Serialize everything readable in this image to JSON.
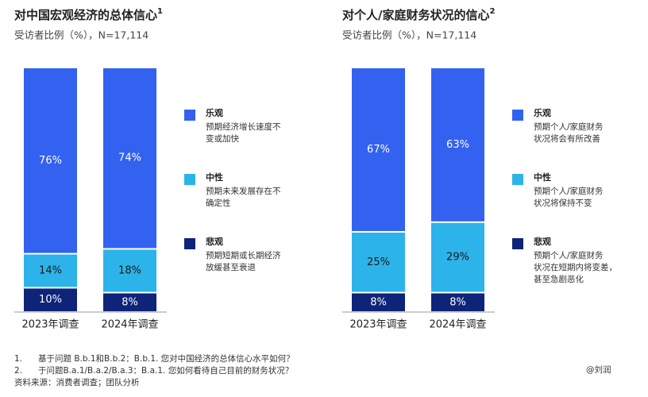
{
  "chart_data": [
    {
      "type": "bar",
      "stacked": true,
      "title": "对中国宏观经济的总体信心",
      "title_note": "1",
      "subtitle": "受访者比例（%），N=17,114",
      "categories": [
        "2023年调查",
        "2024年调查"
      ],
      "series": [
        {
          "name": "乐观",
          "description": [
            "预期经济增长速度不",
            "变或加快"
          ],
          "color": "#3262ef",
          "label_color": "#ffffff",
          "values": [
            76,
            74
          ],
          "value_labels": [
            "76%",
            "74%"
          ]
        },
        {
          "name": "中性",
          "description": [
            "预期未来发展存在不",
            "确定性"
          ],
          "color": "#2cb3ea",
          "label_color": "#1a1a1a",
          "values": [
            14,
            18
          ],
          "value_labels": [
            "14%",
            "18%"
          ]
        },
        {
          "name": "悲观",
          "description": [
            "预期短期或长期经济",
            "放缓甚至衰退"
          ],
          "color": "#0e2478",
          "label_color": "#ffffff",
          "values": [
            10,
            8
          ],
          "value_labels": [
            "10%",
            "8%"
          ]
        }
      ]
    },
    {
      "type": "bar",
      "stacked": true,
      "title": "对个人/家庭财务状况的信心",
      "title_note": "2",
      "subtitle": "受访者比例（%），N=17,114",
      "categories": [
        "2023年调查",
        "2024年调查"
      ],
      "series": [
        {
          "name": "乐观",
          "description": [
            "预期个人/家庭财务",
            "状况将会有所改善"
          ],
          "color": "#3262ef",
          "label_color": "#ffffff",
          "values": [
            67,
            63
          ],
          "value_labels": [
            "67%",
            "63%"
          ]
        },
        {
          "name": "中性",
          "description": [
            "预期个人/家庭财务",
            "状况将保持不变"
          ],
          "color": "#2cb3ea",
          "label_color": "#1a1a1a",
          "values": [
            25,
            29
          ],
          "value_labels": [
            "25%",
            "29%"
          ]
        },
        {
          "name": "悲观",
          "description": [
            "预期个人/家庭财务",
            "状况在短期内将变差，",
            "甚至急剧恶化"
          ],
          "color": "#0e2478",
          "label_color": "#ffffff",
          "values": [
            8,
            8
          ],
          "value_labels": [
            "8%",
            "8%"
          ]
        }
      ]
    }
  ],
  "footnotes": [
    {
      "number": "1.",
      "text": "基于问题 B.b.1和B.b.2：B.b.1. 您对中国经济的总体信心水平如何？"
    },
    {
      "number": "2.",
      "text": "于问题B.a.1/B.a.2/B.a.3：B.a.1. 您如何看待自己目前的财务状况？"
    }
  ],
  "source": "资料来源：消费者调查；团队分析",
  "watermark": "@刘润"
}
